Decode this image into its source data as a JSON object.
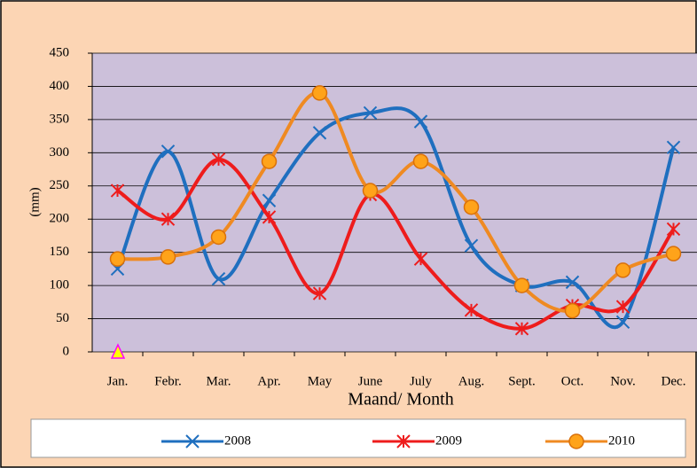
{
  "chart_data": {
    "type": "line",
    "categories": [
      "Jan.",
      "Febr.",
      "Mar.",
      "Apr.",
      "May",
      "June",
      "July",
      "Aug.",
      "Sept.",
      "Oct.",
      "Nov.",
      "Dec."
    ],
    "series": [
      {
        "name": "2008",
        "color": "#1f6fbf",
        "marker": "x",
        "values": [
          125,
          302,
          110,
          228,
          330,
          360,
          347,
          160,
          100,
          105,
          45,
          308
        ]
      },
      {
        "name": "2009",
        "color": "#ee1c1c",
        "marker": "star",
        "values": [
          243,
          200,
          290,
          203,
          88,
          237,
          140,
          63,
          35,
          70,
          68,
          185
        ]
      },
      {
        "name": "2010",
        "color": "#ef8a22",
        "marker": "circle",
        "values": [
          140,
          143,
          173,
          287,
          390,
          243,
          287,
          218,
          100,
          62,
          123,
          148
        ]
      }
    ],
    "y_label": "(mm)",
    "x_label": "Maand/ Month",
    "ylim": [
      0,
      450
    ],
    "yticks": [
      0,
      50,
      100,
      150,
      200,
      250,
      300,
      350,
      400,
      450
    ],
    "grid": true,
    "smooth": true,
    "legend": "bottom"
  }
}
